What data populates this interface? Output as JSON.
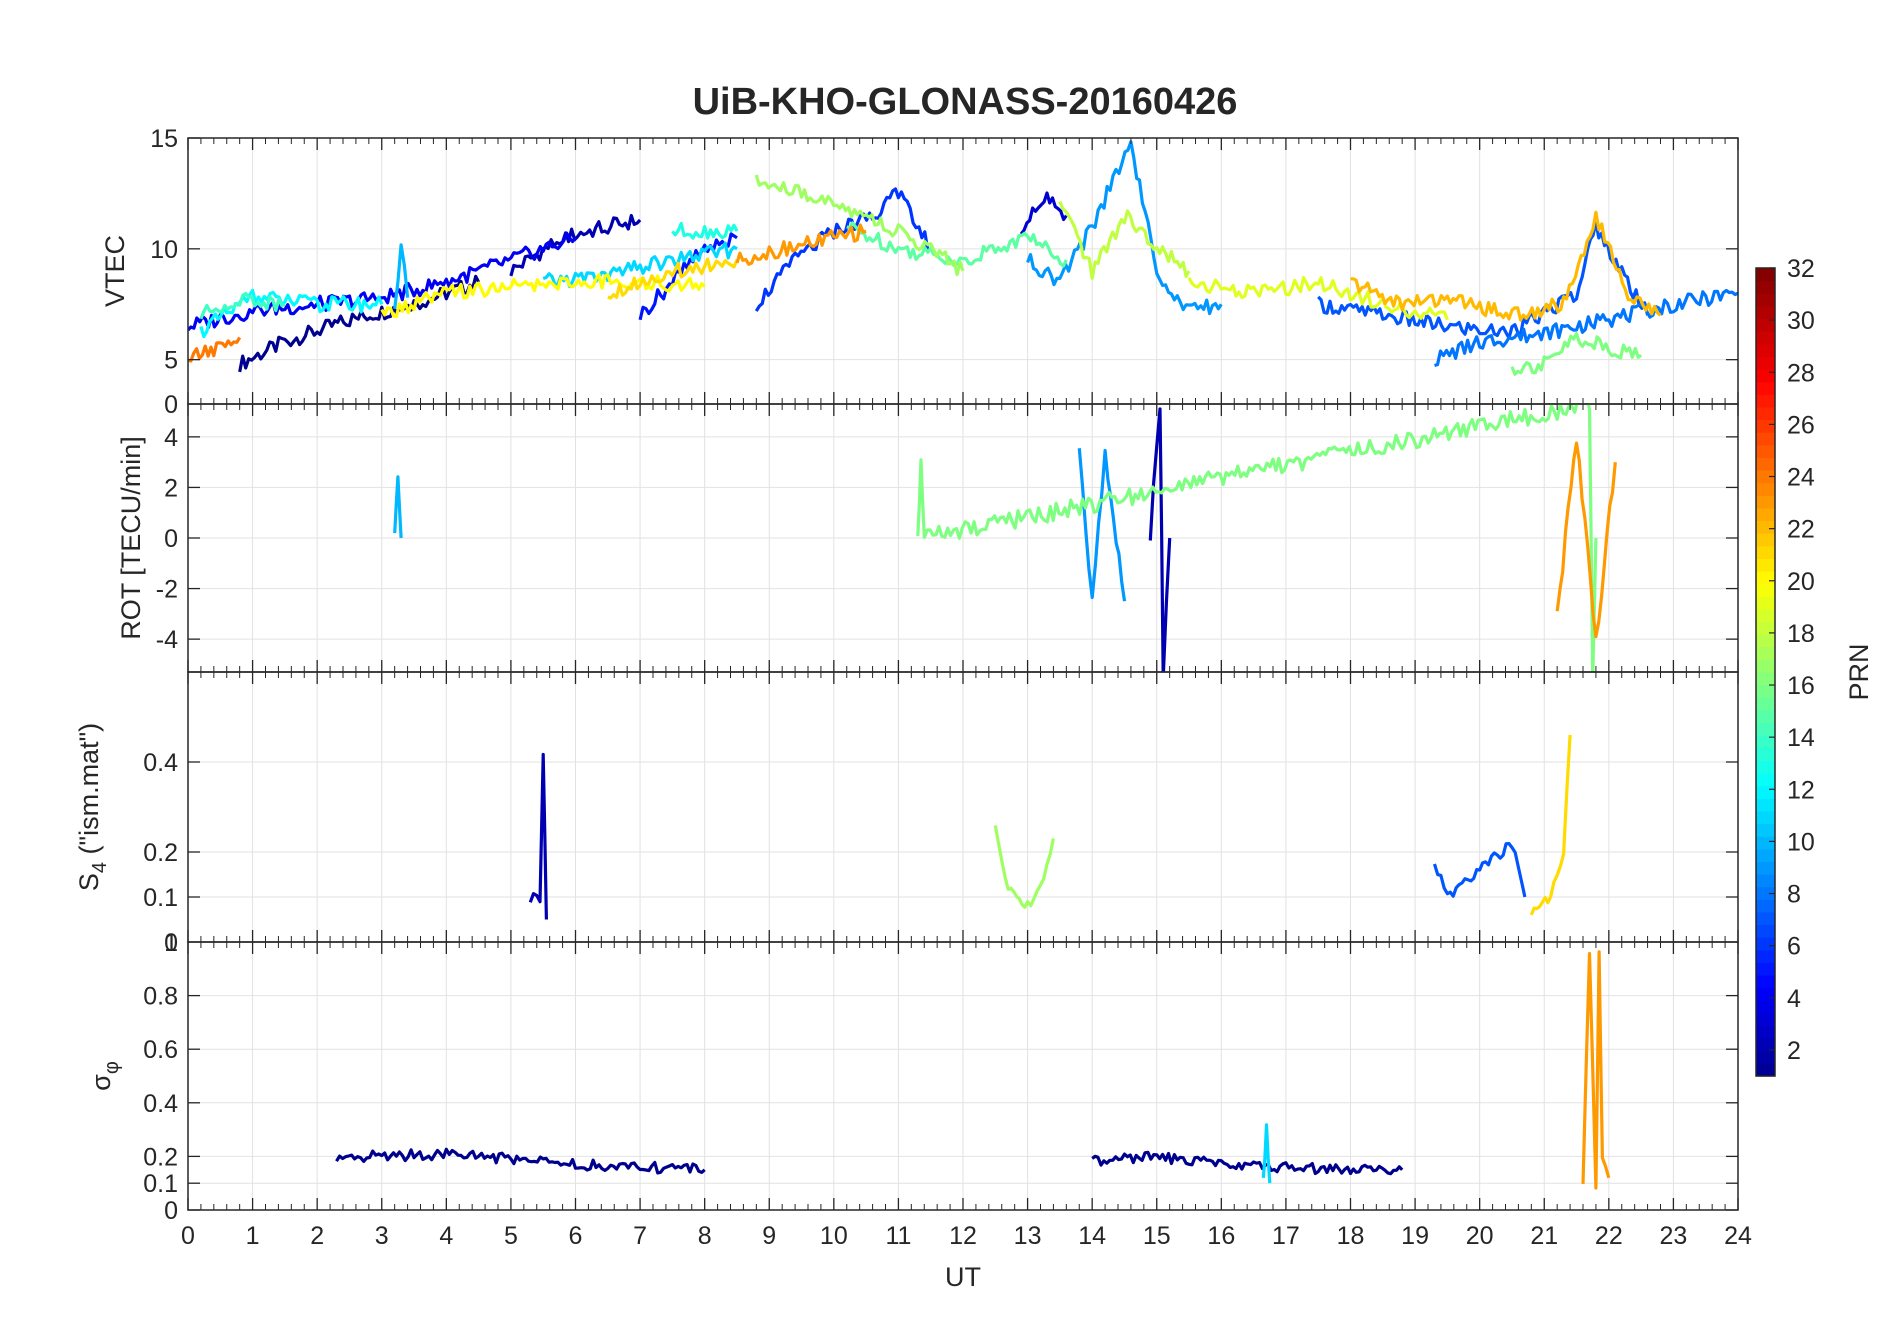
{
  "figure": {
    "title": "UiB-KHO-GLONASS-20160426"
  },
  "colormap": {
    "name": "jet",
    "stops": [
      "#00008f",
      "#0000ff",
      "#00ffff",
      "#ffff00",
      "#ff0000",
      "#800000"
    ]
  },
  "chart_data": [
    {
      "type": "line",
      "panel": "vtec",
      "ylabel": "VTEC",
      "xlim": [
        0,
        24
      ],
      "ylim": [
        3,
        15
      ],
      "yticks": [
        5,
        10,
        15
      ],
      "yticklabels": [
        "5",
        "10",
        "15"
      ],
      "xticklabels_shown": false,
      "grid": true,
      "series": [
        {
          "prn": 1,
          "x": [
            0.8,
            1.5,
            2.5,
            3.5,
            4.5
          ],
          "y": [
            4.8,
            5.8,
            6.8,
            7.5,
            8.5
          ]
        },
        {
          "prn": 2,
          "x": [
            5,
            5.8,
            6.5,
            7
          ],
          "y": [
            9,
            10.5,
            11,
            11.3
          ]
        },
        {
          "prn": 3,
          "x": [
            12.9,
            13.3,
            13.6
          ],
          "y": [
            11,
            12.2,
            11.5
          ]
        },
        {
          "prn": 4,
          "x": [
            0,
            1,
            2,
            3,
            4,
            5,
            6
          ],
          "y": [
            6.5,
            7.2,
            7.5,
            7.8,
            8.5,
            9.5,
            10.5
          ]
        },
        {
          "prn": 5,
          "x": [
            7,
            7.5,
            8,
            8.5
          ],
          "y": [
            7,
            8.5,
            10,
            10.5
          ]
        },
        {
          "prn": 6,
          "x": [
            8.8,
            9.4,
            10,
            10.6,
            11,
            11.5
          ],
          "y": [
            7.5,
            9.5,
            10.8,
            11.5,
            12.5,
            10
          ]
        },
        {
          "prn": 7,
          "x": [
            17.5,
            18.5,
            19.5,
            20.5,
            21.5,
            21.8,
            22.2,
            22.6
          ],
          "y": [
            7.5,
            7,
            6.5,
            6.2,
            8,
            11,
            9,
            7
          ]
        },
        {
          "prn": 8,
          "x": [
            19.3,
            20,
            21,
            22,
            23,
            24
          ],
          "y": [
            5,
            5.8,
            6.2,
            6.8,
            7.5,
            8
          ]
        },
        {
          "prn": 9,
          "x": [
            13,
            13.5,
            14,
            14.6,
            15,
            15.5,
            16
          ],
          "y": [
            9.5,
            8.5,
            11,
            14.8,
            9,
            7.2,
            7.5
          ]
        },
        {
          "prn": 10,
          "x": [
            3.2,
            3.3,
            3.4
          ],
          "y": [
            7,
            10.3,
            7.8
          ]
        },
        {
          "prn": 11,
          "x": [
            5.5,
            6.5,
            7.5,
            8.5
          ],
          "y": [
            8.5,
            8.8,
            9.5,
            10
          ]
        },
        {
          "prn": 12,
          "x": [
            0.2,
            1,
            2,
            3
          ],
          "y": [
            6.3,
            7.8,
            7.5,
            7.5
          ]
        },
        {
          "prn": 13,
          "x": [
            7.5,
            8.5
          ],
          "y": [
            10.8,
            10.8
          ]
        },
        {
          "prn": 14,
          "x": [
            0.2,
            0.8,
            1.5
          ],
          "y": [
            7,
            7.8,
            7.5
          ]
        },
        {
          "prn": 15,
          "x": [
            10.2,
            11,
            12,
            13,
            13.6
          ],
          "y": [
            11,
            10,
            9.5,
            10.5,
            9.5
          ]
        },
        {
          "prn": 16,
          "x": [
            20.5,
            21,
            21.5,
            22,
            22.5
          ],
          "y": [
            4.6,
            4.8,
            6,
            5.5,
            5.2
          ]
        },
        {
          "prn": 17,
          "x": [
            8.8,
            9.5,
            10.5,
            11.5,
            12
          ],
          "y": [
            13,
            12.5,
            11.5,
            10,
            9
          ]
        },
        {
          "prn": 18,
          "x": [
            13.5,
            14,
            14.5,
            15,
            15.5
          ],
          "y": [
            12,
            9,
            11.5,
            10,
            9
          ]
        },
        {
          "prn": 19,
          "x": [
            15.5,
            16.5,
            17.5,
            18.5,
            19.5
          ],
          "y": [
            8.5,
            8,
            8.5,
            7.5,
            6.8
          ]
        },
        {
          "prn": 20,
          "x": [
            3,
            4,
            5,
            6,
            7,
            8
          ],
          "y": [
            7,
            8,
            8.3,
            8.5,
            8.5,
            8.3
          ]
        },
        {
          "prn": 21,
          "x": [
            6.5,
            7.5,
            8.5
          ],
          "y": [
            8,
            9,
            9.5
          ]
        },
        {
          "prn": 22,
          "x": [
            18,
            18.8,
            19.5,
            20.5,
            21.3,
            21.8,
            22.3,
            22.8
          ],
          "y": [
            8.5,
            7.5,
            7.8,
            7,
            7.5,
            11.5,
            8,
            7
          ]
        },
        {
          "prn": 23,
          "x": [
            8.5,
            9.5,
            10.5
          ],
          "y": [
            9.5,
            10.2,
            10.8
          ]
        },
        {
          "prn": 24,
          "x": [
            0,
            0.4,
            0.8
          ],
          "y": [
            5,
            5.5,
            6
          ]
        }
      ]
    },
    {
      "type": "line",
      "panel": "rot",
      "ylabel": "ROT [TECU/min]",
      "xlim": [
        0,
        24
      ],
      "ylim": [
        -5.3,
        5.3
      ],
      "yticks": [
        -4,
        -2,
        0,
        2,
        4
      ],
      "yticklabels": [
        "-4",
        "-2",
        "0",
        "2",
        "4"
      ],
      "extra_tick_label": {
        "y": 5.3,
        "text": "0"
      },
      "xticklabels_shown": false,
      "grid": true,
      "series": [
        {
          "prn": 2,
          "x": [
            14.9,
            15.05,
            15.1,
            15.2
          ],
          "y": [
            0,
            5.3,
            -5.3,
            0
          ]
        },
        {
          "prn": 10,
          "x": [
            3.2,
            3.25,
            3.3
          ],
          "y": [
            0,
            2.4,
            0
          ]
        },
        {
          "prn": 9,
          "x": [
            13.8,
            14,
            14.2,
            14.5
          ],
          "y": [
            3.5,
            -2.5,
            3.5,
            -2.5
          ]
        },
        {
          "prn": 16,
          "x": [
            11.3,
            11.35,
            11.4,
            21.7,
            21.75,
            21.8
          ],
          "y": [
            0,
            2.9,
            0,
            5.3,
            -5.3,
            0
          ]
        },
        {
          "prn": 23,
          "x": [
            21.2,
            21.5,
            21.8,
            22.1
          ],
          "y": [
            -3,
            4,
            -4,
            3
          ]
        }
      ]
    },
    {
      "type": "line",
      "panel": "s4",
      "ylabel": "S_4 (\"ism.mat\")",
      "xlim": [
        0,
        24
      ],
      "ylim": [
        0,
        0.6
      ],
      "yticks": [
        0.1,
        0.2,
        0.4
      ],
      "yticklabels": [
        "0.1",
        "0.2",
        "0.4"
      ],
      "extra_tick_label": {
        "y": 0,
        "text": "0"
      },
      "xticklabels_shown": false,
      "grid": true,
      "series": [
        {
          "prn": 2,
          "x": [
            5.3,
            5.45,
            5.5,
            5.55
          ],
          "y": [
            0.1,
            0.1,
            0.42,
            0.05
          ]
        },
        {
          "prn": 17,
          "x": [
            12.5,
            12.7,
            13,
            13.2,
            13.4
          ],
          "y": [
            0.25,
            0.12,
            0.08,
            0.12,
            0.23
          ]
        },
        {
          "prn": 21,
          "x": [
            20.8,
            21.1,
            21.3,
            21.4
          ],
          "y": [
            0.07,
            0.1,
            0.2,
            0.46
          ]
        },
        {
          "prn": 7,
          "x": [
            19.3,
            19.5,
            20.5,
            20.7
          ],
          "y": [
            0.18,
            0.1,
            0.22,
            0.1
          ]
        }
      ]
    },
    {
      "type": "line",
      "panel": "sigma-phi",
      "ylabel": "σ_φ",
      "xlabel": "UT",
      "xlim": [
        0,
        24
      ],
      "ylim": [
        0,
        1
      ],
      "yticks": [
        0,
        0.1,
        0.2,
        0.4,
        0.6,
        0.8
      ],
      "yticklabels": [
        "0",
        "0.1",
        "0.2",
        "0.4",
        "0.6",
        "0.8"
      ],
      "extra_tick_label": {
        "y": 1,
        "text": "1"
      },
      "xticks": [
        0,
        1,
        2,
        3,
        4,
        5,
        6,
        7,
        8,
        9,
        10,
        11,
        12,
        13,
        14,
        15,
        16,
        17,
        18,
        19,
        20,
        21,
        22,
        23,
        24
      ],
      "xticklabels": [
        "0",
        "1",
        "2",
        "3",
        "4",
        "5",
        "6",
        "7",
        "8",
        "9",
        "10",
        "11",
        "12",
        "13",
        "14",
        "15",
        "16",
        "17",
        "18",
        "19",
        "20",
        "21",
        "22",
        "23",
        "24"
      ],
      "grid": true,
      "series": [
        {
          "prn": 1,
          "x": [
            2.3,
            3,
            4,
            5,
            6,
            7,
            8
          ],
          "y": [
            0.2,
            0.2,
            0.21,
            0.19,
            0.17,
            0.16,
            0.15
          ]
        },
        {
          "prn": 1,
          "x": [
            14,
            15,
            16,
            17,
            18,
            18.8
          ],
          "y": [
            0.18,
            0.2,
            0.17,
            0.16,
            0.15,
            0.15
          ]
        },
        {
          "prn": 23,
          "x": [
            21.6,
            21.7,
            21.8,
            21.85,
            21.9,
            22
          ],
          "y": [
            0.1,
            0.95,
            0.1,
            0.95,
            0.2,
            0.12
          ]
        },
        {
          "prn": 11,
          "x": [
            16.65,
            16.7,
            16.75
          ],
          "y": [
            0.1,
            0.3,
            0.1
          ]
        }
      ]
    }
  ],
  "colorbar": {
    "label": "PRN",
    "range": [
      1,
      32
    ],
    "ticks": [
      2,
      4,
      6,
      8,
      10,
      12,
      14,
      16,
      18,
      20,
      22,
      24,
      26,
      28,
      30,
      32
    ],
    "ticklabels": [
      "2",
      "4",
      "6",
      "8",
      "10",
      "12",
      "14",
      "16",
      "18",
      "20",
      "22",
      "24",
      "26",
      "28",
      "30",
      "32"
    ]
  }
}
